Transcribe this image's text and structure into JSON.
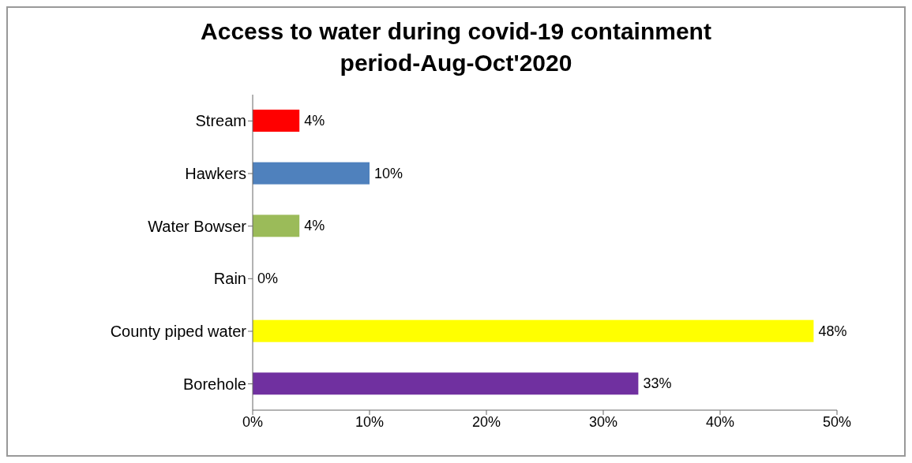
{
  "chart_data": {
    "type": "bar",
    "orientation": "horizontal",
    "title": "Access to water during covid-19 containment period-Aug-Oct'2020",
    "categories": [
      "Stream",
      "Hawkers",
      "Water Bowser",
      "Rain",
      "County piped water",
      "Borehole"
    ],
    "values": [
      4,
      10,
      4,
      0,
      48,
      33
    ],
    "colors": [
      "#ff0000",
      "#4f81bd",
      "#9bbb59",
      "#8b3a3a",
      "#ffff00",
      "#7030a0"
    ],
    "value_labels": [
      "4%",
      "10%",
      "4%",
      "0%",
      "48%",
      "33%"
    ],
    "xlim": [
      0,
      50
    ],
    "xticks": [
      {
        "value": 0,
        "label": "0%"
      },
      {
        "value": 10,
        "label": "10%"
      },
      {
        "value": 20,
        "label": "20%"
      },
      {
        "value": 30,
        "label": "30%"
      },
      {
        "value": 40,
        "label": "40%"
      },
      {
        "value": 50,
        "label": "50%"
      }
    ],
    "grid": false
  }
}
